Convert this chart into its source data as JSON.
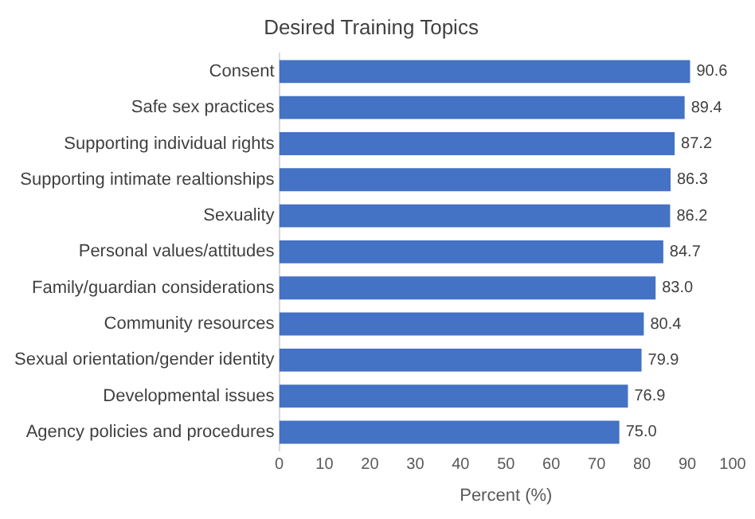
{
  "chart_data": {
    "type": "bar",
    "orientation": "horizontal",
    "title": "Desired Training Topics",
    "xlabel": "Percent (%)",
    "categories": [
      "Consent",
      "Safe sex practices",
      "Supporting individual rights",
      "Supporting intimate realtionships",
      "Sexuality",
      "Personal values/attitudes",
      "Family/guardian considerations",
      "Community resources",
      "Sexual orientation/gender identity",
      "Developmental issues",
      "Agency policies and procedures"
    ],
    "values": [
      90.6,
      89.4,
      87.2,
      86.3,
      86.2,
      84.7,
      83.0,
      80.4,
      79.9,
      76.9,
      75.0
    ],
    "value_labels": [
      "90.6",
      "89.4",
      "87.2",
      "86.3",
      "86.2",
      "84.7",
      "83.0",
      "80.4",
      "79.9",
      "76.9",
      "75.0"
    ],
    "color": "#4472c4",
    "xlim": [
      0,
      100
    ],
    "xticks": [
      0,
      10,
      20,
      30,
      40,
      50,
      60,
      70,
      80,
      90,
      100
    ],
    "grid": false,
    "legend": false
  }
}
